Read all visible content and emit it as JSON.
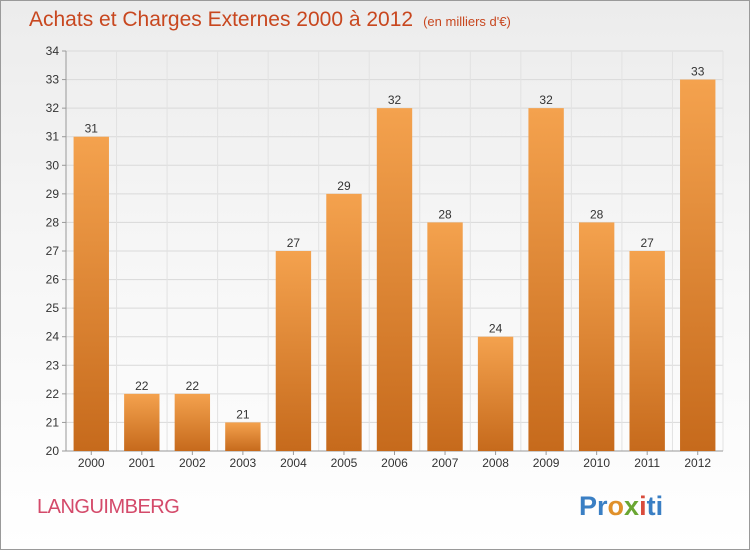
{
  "title": "Achats et Charges Externes 2000 à 2012",
  "unit": "(en milliers d'€)",
  "commune": "LANGUIMBERG",
  "logo": {
    "letters": [
      "Pr",
      "o",
      "x",
      "i",
      "ti"
    ],
    "alt": "Proxiti"
  },
  "colors": {
    "bar_top": "#f4a24e",
    "bar_bottom": "#c66a1c",
    "title": "#c8471f",
    "commune": "#d44a6a"
  },
  "chart_data": {
    "type": "bar",
    "categories": [
      "2000",
      "2001",
      "2002",
      "2003",
      "2004",
      "2005",
      "2006",
      "2007",
      "2008",
      "2009",
      "2010",
      "2011",
      "2012"
    ],
    "values": [
      31,
      22,
      22,
      21,
      27,
      29,
      32,
      28,
      24,
      32,
      28,
      27,
      33
    ],
    "ylim": [
      20,
      34
    ],
    "yticks": [
      20,
      21,
      22,
      23,
      24,
      25,
      26,
      27,
      28,
      29,
      30,
      31,
      32,
      33,
      34
    ],
    "grid": true,
    "data_labels": true
  }
}
